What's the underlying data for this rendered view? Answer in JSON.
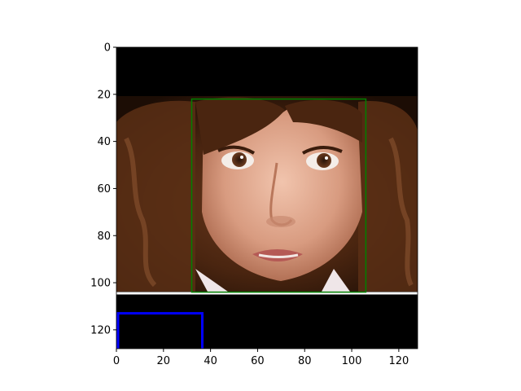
{
  "image_plot": {
    "xlim": [
      0,
      128
    ],
    "ylim": [
      128,
      0
    ],
    "x_ticks": [
      "0",
      "20",
      "40",
      "60",
      "80",
      "100",
      "120"
    ],
    "y_ticks": [
      "0",
      "20",
      "40",
      "60",
      "80",
      "100",
      "120"
    ],
    "x_tick_values": [
      0,
      20,
      40,
      60,
      80,
      100,
      120
    ],
    "y_tick_values": [
      0,
      20,
      40,
      60,
      80,
      100,
      120
    ],
    "image_region_rows": [
      21,
      104
    ],
    "white_line_row": 104.5,
    "face_box": {
      "x0": 32,
      "y0": 22,
      "x1": 106,
      "y1": 104,
      "color": "#008000"
    },
    "blue_box": {
      "x0": 0,
      "y0": 113,
      "x1": 36.5,
      "y1": 128,
      "color": "#0000ff"
    },
    "colors": {
      "background_fill": "#000000",
      "axis": "#000000",
      "separator": "#ffffff"
    }
  }
}
